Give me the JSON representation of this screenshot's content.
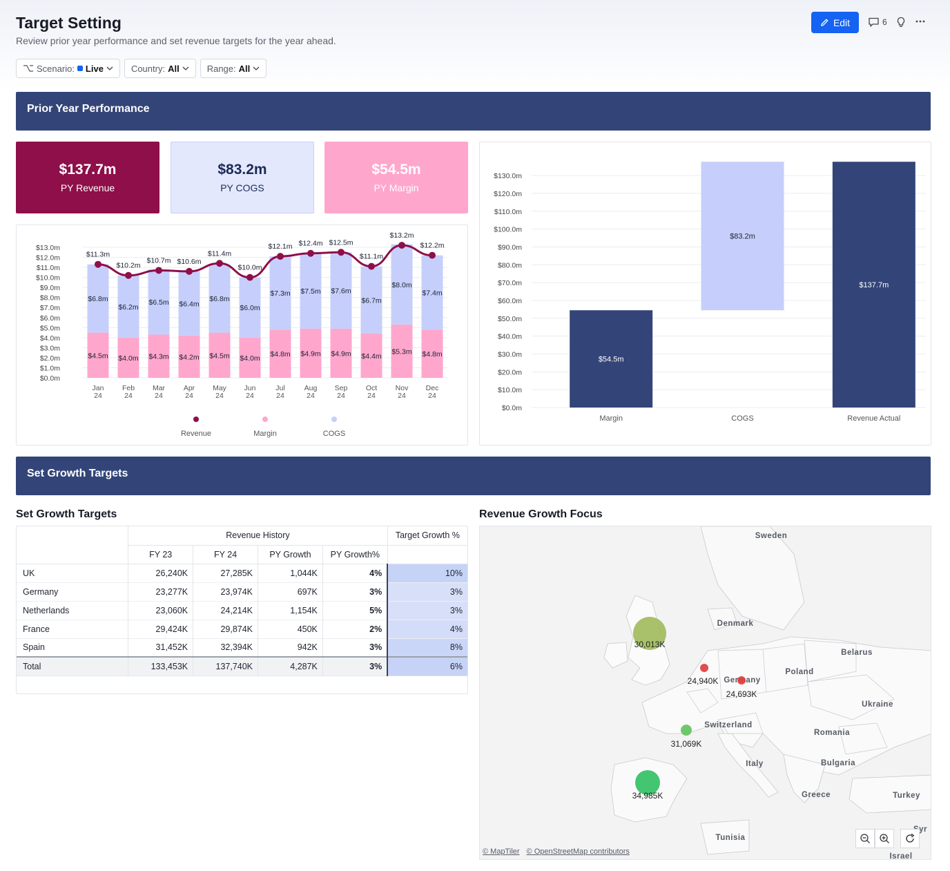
{
  "header": {
    "title": "Target Setting",
    "subtitle": "Review prior year performance and set revenue targets for the year ahead.",
    "edit_label": "Edit",
    "comment_count": "6"
  },
  "filters": [
    {
      "label": "Scenario:",
      "value": "Live"
    },
    {
      "label": "Country:",
      "value": "All"
    },
    {
      "label": "Range:",
      "value": "All"
    }
  ],
  "sections": {
    "prior_year": "Prior Year Performance",
    "growth": "Set Growth Targets"
  },
  "kpis": [
    {
      "value": "$137.7m",
      "label": "PY Revenue",
      "bg": "#8e0f49",
      "fg": "#ffffff"
    },
    {
      "value": "$83.2m",
      "label": "PY COGS",
      "bg": "#e3e8fd",
      "fg": "#1c2a55"
    },
    {
      "value": "$54.5m",
      "label": "PY Margin",
      "bg": "#ffa6cd",
      "fg": "#ffffff"
    }
  ],
  "chart_data": [
    {
      "type": "bar",
      "stacked": true,
      "categories": [
        "Jan 24",
        "Feb 24",
        "Mar 24",
        "Apr 24",
        "May 24",
        "Jun 24",
        "Jul 24",
        "Aug 24",
        "Sep 24",
        "Oct 24",
        "Nov 24",
        "Dec 24"
      ],
      "yticks": [
        "$13.0m",
        "$12.0m",
        "$11.0m",
        "$10.0m",
        "$9.0m",
        "$8.0m",
        "$7.0m",
        "$6.0m",
        "$5.0m",
        "$4.0m",
        "$3.0m",
        "$2.0m",
        "$1.0m",
        "$0.0m"
      ],
      "ylim": [
        0,
        13
      ],
      "series": [
        {
          "name": "Margin",
          "kind": "bar",
          "color": "#ffa6cd",
          "values": [
            4.5,
            4.0,
            4.3,
            4.2,
            4.5,
            4.0,
            4.8,
            4.9,
            4.9,
            4.4,
            5.3,
            4.8
          ],
          "labels": [
            "$4.5m",
            "$4.0m",
            "$4.3m",
            "$4.2m",
            "$4.5m",
            "$4.0m",
            "$4.8m",
            "$4.9m",
            "$4.9m",
            "$4.4m",
            "$5.3m",
            "$4.8m"
          ]
        },
        {
          "name": "COGS",
          "kind": "bar",
          "color": "#c6cffb",
          "values": [
            6.8,
            6.2,
            6.5,
            6.4,
            6.8,
            6.0,
            7.3,
            7.5,
            7.6,
            6.7,
            8.0,
            7.4
          ],
          "labels": [
            "$6.8m",
            "$6.2m",
            "$6.5m",
            "$6.4m",
            "$6.8m",
            "$6.0m",
            "$7.3m",
            "$7.5m",
            "$7.6m",
            "$6.7m",
            "$8.0m",
            "$7.4m"
          ]
        },
        {
          "name": "Revenue",
          "kind": "line",
          "color": "#8e0f49",
          "values": [
            11.3,
            10.2,
            10.7,
            10.6,
            11.4,
            10.0,
            12.1,
            12.4,
            12.5,
            11.1,
            13.2,
            12.2
          ],
          "labels": [
            "$11.3m",
            "$10.2m",
            "$10.7m",
            "$10.6m",
            "$11.4m",
            "$10.0m",
            "$12.1m",
            "$12.4m",
            "$12.5m",
            "$11.1m",
            "$13.2m",
            "$12.2m"
          ]
        }
      ],
      "legend": [
        "Revenue",
        "Margin",
        "COGS"
      ],
      "legend_position": "bottom"
    },
    {
      "type": "bar",
      "waterfall": true,
      "categories": [
        "Margin",
        "COGS",
        "Revenue Actual"
      ],
      "yticks": [
        "$130.0m",
        "$120.0m",
        "$110.0m",
        "$100.0m",
        "$90.0m",
        "$80.0m",
        "$70.0m",
        "$60.0m",
        "$50.0m",
        "$40.0m",
        "$30.0m",
        "$20.0m",
        "$10.0m",
        "$0.0m"
      ],
      "ylim": [
        0,
        137.7
      ],
      "bars": [
        {
          "category": "Margin",
          "start": 0,
          "end": 54.5,
          "label": "$54.5m",
          "color": "#334578"
        },
        {
          "category": "COGS",
          "start": 54.5,
          "end": 137.7,
          "label": "$83.2m",
          "color": "#c6cffb"
        },
        {
          "category": "Revenue Actual",
          "start": 0,
          "end": 137.7,
          "label": "$137.7m",
          "color": "#334578"
        }
      ]
    }
  ],
  "growth_table": {
    "title": "Set Growth Targets",
    "group_headers": {
      "history": "Revenue History",
      "target": "Target Growth %"
    },
    "columns": [
      "FY 23",
      "FY 24",
      "PY Growth",
      "PY Growth%"
    ],
    "rows": [
      {
        "country": "UK",
        "fy23": "26,240K",
        "fy24": "27,285K",
        "growth": "1,044K",
        "growth_pct": "4%",
        "target": "10%",
        "shade": "#c5d3f7"
      },
      {
        "country": "Germany",
        "fy23": "23,277K",
        "fy24": "23,974K",
        "growth": "697K",
        "growth_pct": "3%",
        "target": "3%",
        "shade": "#d8e0f9"
      },
      {
        "country": "Netherlands",
        "fy23": "23,060K",
        "fy24": "24,214K",
        "growth": "1,154K",
        "growth_pct": "5%",
        "target": "3%",
        "shade": "#d8e0f9"
      },
      {
        "country": "France",
        "fy23": "29,424K",
        "fy24": "29,874K",
        "growth": "450K",
        "growth_pct": "2%",
        "target": "4%",
        "shade": "#d3dcf8"
      },
      {
        "country": "Spain",
        "fy23": "31,452K",
        "fy24": "32,394K",
        "growth": "942K",
        "growth_pct": "3%",
        "target": "8%",
        "shade": "#c9d6f7"
      }
    ],
    "total": {
      "country": "Total",
      "fy23": "133,453K",
      "fy24": "137,740K",
      "growth": "4,287K",
      "growth_pct": "3%",
      "target": "6%"
    }
  },
  "map": {
    "title": "Revenue Growth Focus",
    "country_labels": [
      "Sweden",
      "Denmark",
      "Belarus",
      "Poland",
      "Germany",
      "Ukraine",
      "Switzerland",
      "Romania",
      "Italy",
      "Bulgaria",
      "Greece",
      "Turkey",
      "Tunisia",
      "Syr",
      "Israel"
    ],
    "bubbles": [
      {
        "label": "30,013K",
        "color": "#9fba5a"
      },
      {
        "label": "24,940K",
        "color": "#e03a3a"
      },
      {
        "label": "24,693K",
        "color": "#e03a3a"
      },
      {
        "label": "31,069K",
        "color": "#62c25c"
      },
      {
        "label": "34,985K",
        "color": "#2fbf63"
      }
    ],
    "attribution": [
      "© MapTiler",
      "© OpenStreetMap contributors"
    ],
    "controls": [
      "zoom-out",
      "zoom-in",
      "reset"
    ]
  }
}
